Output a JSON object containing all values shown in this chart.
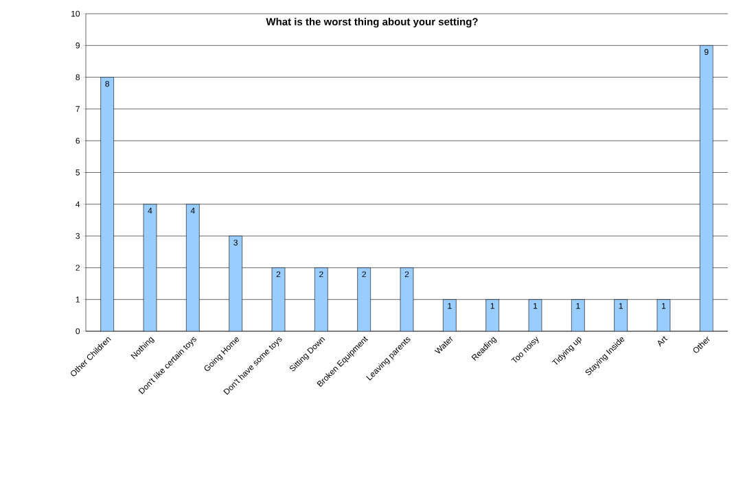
{
  "chart_data": {
    "type": "bar",
    "title": "What is the worst thing about your setting?",
    "categories": [
      "Other Children",
      "Nothing",
      "Don't like certain toys",
      "Going Home",
      "Don't have some toys",
      "Sitting Down",
      "Broken Equipment",
      "Leaving parents",
      "Water",
      "Reading",
      "Too noisy",
      "Tidying up",
      "Staying Inside",
      "Art",
      "Other"
    ],
    "values": [
      8,
      4,
      4,
      3,
      2,
      2,
      2,
      2,
      1,
      1,
      1,
      1,
      1,
      1,
      9
    ],
    "color": "#99ccff",
    "ylim": [
      0,
      10
    ],
    "yticks": [
      0,
      1,
      2,
      3,
      4,
      5,
      6,
      7,
      8,
      9,
      10
    ],
    "grid": "y",
    "data_labels": true
  }
}
